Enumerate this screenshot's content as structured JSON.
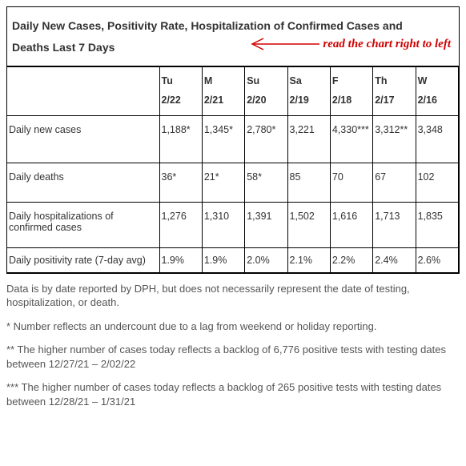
{
  "title_line1": "Daily New Cases, Positivity Rate, Hospitalization of Confirmed Cases and",
  "title_line2": "Deaths Last 7 Days",
  "annotation_text": "read the chart right to left",
  "annotation_color": "#d00000",
  "columns": [
    {
      "day": "Tu",
      "date": "2/22"
    },
    {
      "day": "M",
      "date": "2/21"
    },
    {
      "day": "Su",
      "date": "2/20"
    },
    {
      "day": "Sa",
      "date": "2/19"
    },
    {
      "day": "F",
      "date": "2/18"
    },
    {
      "day": "Th",
      "date": "2/17"
    },
    {
      "day": "W",
      "date": "2/16"
    }
  ],
  "rows": [
    {
      "label": "Daily new cases",
      "height": "tall",
      "cells": [
        "1,188*",
        "1,345*",
        "2,780*",
        "3,221",
        "4,330***",
        "3,312**",
        "3,348"
      ]
    },
    {
      "label": "Daily deaths",
      "height": "med",
      "cells": [
        "36*",
        "21*",
        "58*",
        "85",
        "70",
        "67",
        "102"
      ]
    },
    {
      "label": "Daily hospitalizations of confirmed cases",
      "height": "normal",
      "cells": [
        "1,276",
        "1,310",
        "1,391",
        "1,502",
        "1,616",
        "1,713",
        "1,835"
      ]
    },
    {
      "label": "Daily positivity rate (7-day avg)",
      "height": "short",
      "cells": [
        "1.9%",
        "1.9%",
        "2.0%",
        "2.1%",
        "2.2%",
        "2.4%",
        "2.6%"
      ]
    }
  ],
  "notes": [
    "Data is by date reported by DPH, but does not necessarily represent the date of testing, hospitalization, or death.",
    "* Number reflects an undercount due to a lag from weekend or holiday reporting.",
    "** The higher number of cases today reflects a backlog of 6,776 positive tests with testing dates between 12/27/21 – 2/02/22",
    "*** The higher number of cases today reflects a backlog of 265 positive tests with testing dates between 12/28/21 – 1/31/21"
  ],
  "border_color": "#000000",
  "text_color": "#333333",
  "notes_color": "#555555"
}
